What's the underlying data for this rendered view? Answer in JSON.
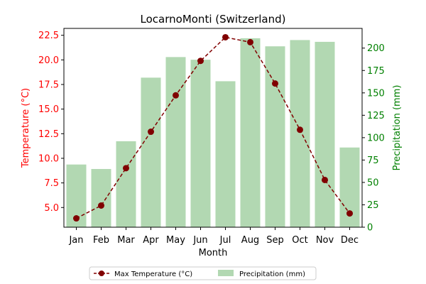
{
  "chart_data": {
    "type": "bar+line",
    "title": "LocarnoMonti (Switzerland)",
    "xlabel": "Month",
    "ylabel_left": "Temperature (°C)",
    "ylabel_right": "Precipitation (mm)",
    "categories": [
      "Jan",
      "Feb",
      "Mar",
      "Apr",
      "May",
      "Jun",
      "Jul",
      "Aug",
      "Sep",
      "Oct",
      "Nov",
      "Dec"
    ],
    "left_axis": {
      "ylim": [
        3.0,
        23.2
      ],
      "ticks": [
        5.0,
        7.5,
        10.0,
        12.5,
        15.0,
        17.5,
        20.0,
        22.5
      ],
      "tick_labels": [
        "5.0",
        "7.5",
        "10.0",
        "12.5",
        "15.0",
        "17.5",
        "20.0",
        "22.5"
      ],
      "color": "#ff0000"
    },
    "right_axis": {
      "ylim": [
        0,
        222
      ],
      "ticks": [
        0,
        25,
        50,
        75,
        100,
        125,
        150,
        175,
        200
      ],
      "tick_labels": [
        "0",
        "25",
        "50",
        "75",
        "100",
        "125",
        "150",
        "175",
        "200"
      ],
      "color": "#008000"
    },
    "series": [
      {
        "name": "Max Temperature (°C)",
        "kind": "line",
        "axis": "left",
        "color": "#800000",
        "values": [
          3.9,
          5.2,
          9.0,
          12.7,
          16.4,
          19.9,
          22.3,
          21.8,
          17.6,
          12.9,
          7.8,
          4.4
        ]
      },
      {
        "name": "Precipitation (mm)",
        "kind": "bar",
        "axis": "right",
        "color": "#b2d8b2",
        "values": [
          70,
          65,
          96,
          167,
          190,
          187,
          163,
          211,
          202,
          209,
          207,
          89
        ]
      }
    ],
    "grid": false,
    "legend_position": "bottom-center"
  }
}
